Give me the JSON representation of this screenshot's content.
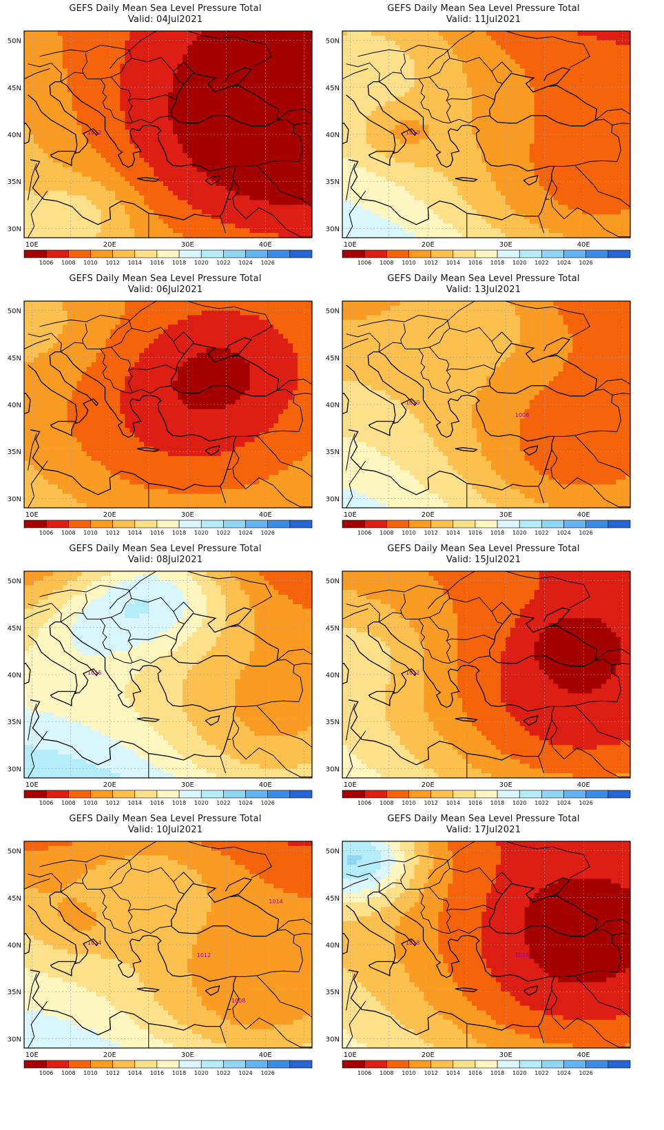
{
  "colorbar": {
    "labels": [
      "1006",
      "1008",
      "1010",
      "1012",
      "1014",
      "1016",
      "1018",
      "1020",
      "1022",
      "1024",
      "1026"
    ],
    "colors": [
      "#a50000",
      "#dc1e14",
      "#f5640a",
      "#fa9b23",
      "#fbc04e",
      "#fce08a",
      "#fdf6c0",
      "#d8f6fc",
      "#b4ecfa",
      "#91d6f5",
      "#64b4f0",
      "#3c8ce6",
      "#2864d2"
    ]
  },
  "axes": {
    "x_ticks": [
      "10E",
      "20E",
      "30E",
      "40E"
    ],
    "y_ticks": [
      "50N",
      "45N",
      "40N",
      "35N",
      "30N"
    ]
  },
  "panels": [
    {
      "title": "GEFS Daily Mean Sea Level Pressure Total",
      "valid": "Valid: 04Jul2021",
      "contour_labels": [
        "1012"
      ],
      "field": {
        "base": 1012.5,
        "wx": -1.6,
        "wy": -2.2,
        "lows": [
          [
            0.85,
            0.55,
            -8,
            0.5
          ]
        ],
        "highs": [
          [
            0.22,
            0.85,
            2.5,
            0.12
          ]
        ]
      }
    },
    {
      "title": "GEFS Daily Mean Sea Level Pressure Total",
      "valid": "Valid: 11Jul2021",
      "contour_labels": [
        "1010"
      ],
      "field": {
        "base": 1014,
        "wx": -1.2,
        "wy": -5,
        "lows": [
          [
            0.85,
            0.85,
            -7,
            0.35
          ],
          [
            0.2,
            0.5,
            -3,
            0.1
          ]
        ],
        "highs": [
          [
            0.1,
            0.05,
            4,
            0.25
          ]
        ]
      }
    },
    {
      "title": "GEFS Daily Mean Sea Level Pressure Total",
      "valid": "Valid: 06Jul2021",
      "contour_labels": [],
      "field": {
        "base": 1012,
        "wx": -0.5,
        "wy": -1.5,
        "lows": [
          [
            0.55,
            0.6,
            -5,
            0.35
          ],
          [
            0.7,
            0.3,
            -2.5,
            0.2
          ]
        ],
        "highs": [
          [
            0.05,
            0.1,
            2,
            0.2
          ]
        ]
      }
    },
    {
      "title": "GEFS Daily Mean Sea Level Pressure Total",
      "valid": "Valid: 13Jul2021",
      "contour_labels": [
        "1010",
        "1008"
      ],
      "field": {
        "base": 1013.5,
        "wx": -1.5,
        "wy": -4,
        "lows": [
          [
            0.8,
            0.8,
            -6,
            0.3
          ]
        ],
        "highs": [
          [
            0.45,
            0.05,
            3.5,
            0.2
          ]
        ]
      }
    },
    {
      "title": "GEFS Daily Mean Sea Level Pressure Total",
      "valid": "Valid: 08Jul2021",
      "contour_labels": [
        "1016"
      ],
      "field": {
        "base": 1015,
        "wx": -1,
        "wy": -6,
        "lows": [
          [
            0.85,
            0.85,
            -6,
            0.3
          ]
        ],
        "highs": [
          [
            0.45,
            0.1,
            9,
            0.2
          ],
          [
            0.2,
            0.3,
            3,
            0.15
          ]
        ]
      }
    },
    {
      "title": "GEFS Daily Mean Sea Level Pressure Total",
      "valid": "Valid: 15Jul2021",
      "contour_labels": [
        "1012"
      ],
      "field": {
        "base": 1012.5,
        "wx": -2,
        "wy": -3,
        "lows": [
          [
            0.75,
            0.7,
            -6,
            0.35
          ],
          [
            0.8,
            0.35,
            -3,
            0.1
          ]
        ],
        "highs": [
          [
            0.1,
            0.4,
            2,
            0.15
          ]
        ]
      }
    },
    {
      "title": "GEFS Daily Mean Sea Level Pressure Total",
      "valid": "Valid: 10Jul2021",
      "contour_labels": [
        "1014",
        "1012",
        "1014",
        "1008"
      ],
      "field": {
        "base": 1014,
        "wx": -0.8,
        "wy": -5.5,
        "lows": [
          [
            0.8,
            0.85,
            -6,
            0.3
          ],
          [
            0.2,
            0.4,
            -2,
            0.1
          ]
        ],
        "highs": [
          [
            0.45,
            0.15,
            3,
            0.2
          ]
        ]
      }
    },
    {
      "title": "GEFS Daily Mean Sea Level Pressure Total",
      "valid": "Valid: 17Jul2021",
      "contour_labels": [
        "1018",
        "1016"
      ],
      "field": {
        "base": 1012,
        "wx": -2,
        "wy": -3,
        "lows": [
          [
            0.75,
            0.65,
            -6,
            0.35
          ],
          [
            0.78,
            0.35,
            -2,
            0.1
          ]
        ],
        "highs": [
          [
            0.05,
            0.08,
            11,
            0.15
          ]
        ]
      }
    }
  ]
}
